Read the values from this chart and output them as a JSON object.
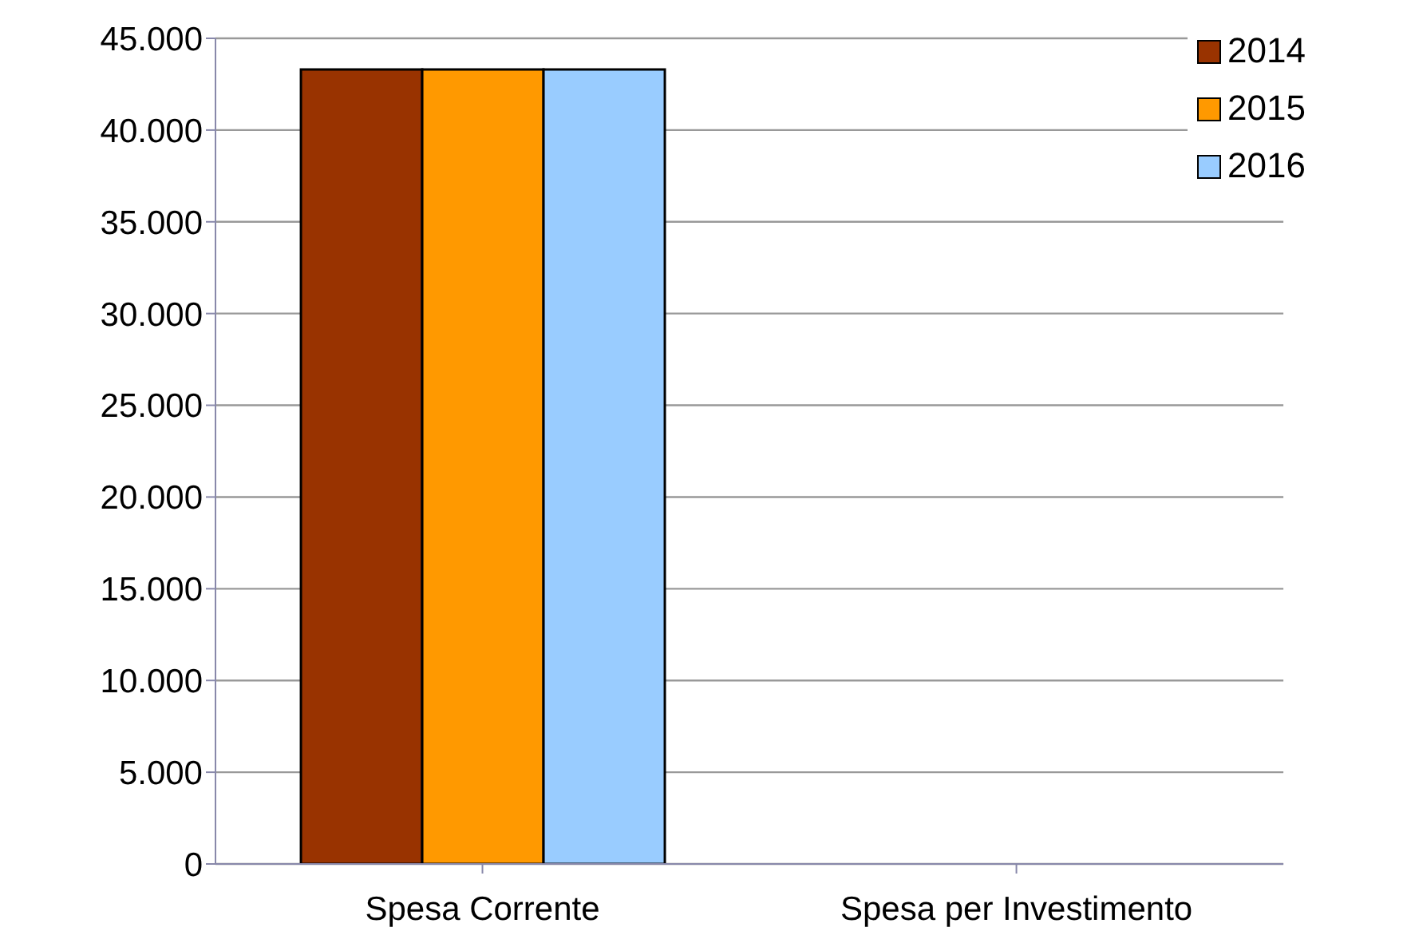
{
  "chart_data": {
    "type": "bar",
    "categories": [
      "Spesa Corrente",
      "Spesa per Investimento"
    ],
    "series": [
      {
        "name": "2014",
        "color": "#993300",
        "values": [
          43300,
          0
        ]
      },
      {
        "name": "2015",
        "color": "#ff9900",
        "values": [
          43300,
          0
        ]
      },
      {
        "name": "2016",
        "color": "#99ccff",
        "values": [
          43300,
          0
        ]
      }
    ],
    "ylim": [
      0,
      45000
    ],
    "yticks": [
      {
        "value": 0,
        "label": "0"
      },
      {
        "value": 5000,
        "label": "5.000"
      },
      {
        "value": 10000,
        "label": "10.000"
      },
      {
        "value": 15000,
        "label": "15.000"
      },
      {
        "value": 20000,
        "label": "20.000"
      },
      {
        "value": 25000,
        "label": "25.000"
      },
      {
        "value": 30000,
        "label": "30.000"
      },
      {
        "value": 35000,
        "label": "35.000"
      },
      {
        "value": 40000,
        "label": "40.000"
      },
      {
        "value": 45000,
        "label": "45.000"
      }
    ],
    "grid": "y",
    "legend": "top right"
  }
}
